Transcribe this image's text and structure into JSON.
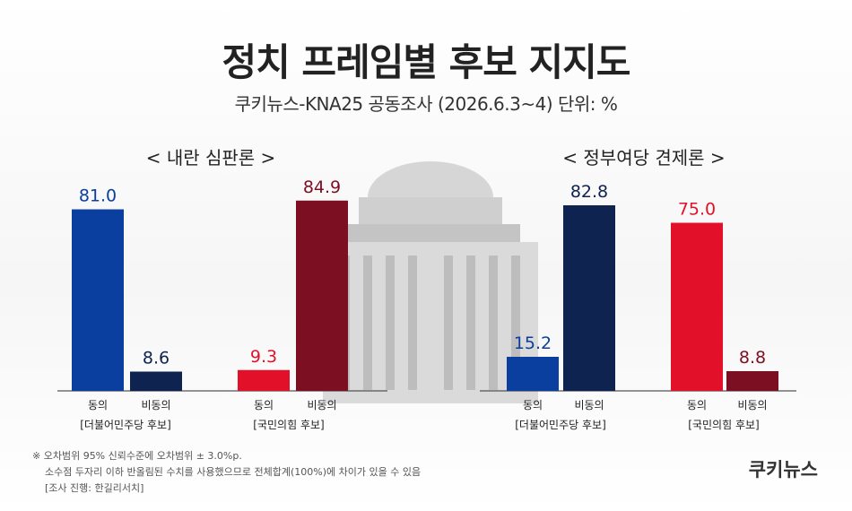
{
  "title": "정치 프레임별 후보 지지도",
  "subtitle": "쿠키뉴스-KNA25 공동조사 (2026.6.3~4) 단위: %",
  "brand": "쿠키뉴스",
  "footnotes": [
    "※ 오차범위 95% 신뢰수준에 오차범위 ± 3.0%p.",
    "소수점 두자리 이하 반올림된 수치를 사용했으므로 전체합계(100%)에 차이가 있을 수 있음",
    "[조사 진행: 한길리서치]"
  ],
  "colors": {
    "dem_agree": "#0a3fa0",
    "dem_disagree": "#0f2350",
    "ppp_agree": "#e3102a",
    "ppp_disagree": "#7d0f22"
  },
  "chart_data": [
    {
      "type": "bar",
      "title": "< 내란 심판론 >",
      "ylim": [
        0,
        100
      ],
      "groups": [
        {
          "label": "[더불어민주당 후보]",
          "bars": [
            {
              "category": "동의",
              "value": 81.0,
              "label": "81.0",
              "color_key": "dem_agree"
            },
            {
              "category": "비동의",
              "value": 8.6,
              "label": "8.6",
              "color_key": "dem_disagree"
            }
          ]
        },
        {
          "label": "[국민의힘 후보]",
          "bars": [
            {
              "category": "동의",
              "value": 9.3,
              "label": "9.3",
              "color_key": "ppp_agree"
            },
            {
              "category": "비동의",
              "value": 84.9,
              "label": "84.9",
              "color_key": "ppp_disagree"
            }
          ]
        }
      ]
    },
    {
      "type": "bar",
      "title": "< 정부여당 견제론 >",
      "ylim": [
        0,
        100
      ],
      "groups": [
        {
          "label": "[더불어민주당 후보]",
          "bars": [
            {
              "category": "동의",
              "value": 15.2,
              "label": "15.2",
              "color_key": "dem_agree"
            },
            {
              "category": "비동의",
              "value": 82.8,
              "label": "82.8",
              "color_key": "dem_disagree"
            }
          ]
        },
        {
          "label": "[국민의힘 후보]",
          "bars": [
            {
              "category": "동의",
              "value": 75.0,
              "label": "75.0",
              "color_key": "ppp_agree"
            },
            {
              "category": "비동의",
              "value": 8.8,
              "label": "8.8",
              "color_key": "ppp_disagree"
            }
          ]
        }
      ]
    }
  ]
}
